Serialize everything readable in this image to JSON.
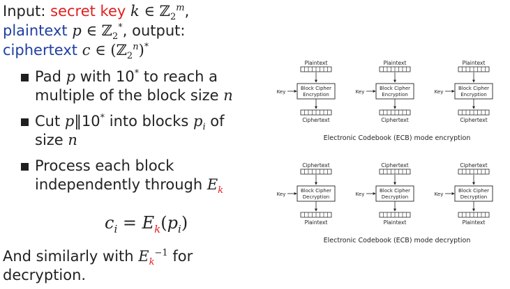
{
  "intro": {
    "input_label": "Input: ",
    "secret_key": "secret key ",
    "key_var": "k",
    "in": " ∈ ",
    "field": "ℤ",
    "sub2": "2",
    "sup_m": "m",
    "comma": ",",
    "plaintext_label": "plaintext ",
    "p_var": "p",
    "sup_star": "*",
    "output_label": ", output:",
    "ciphertext_label": "ciphertext ",
    "c_var": "c",
    "open": "(",
    "sup_n": "n",
    "close": ")",
    "star": "*"
  },
  "bullets": [
    {
      "l1a": "Pad ",
      "l1b": "p",
      "l1c": " with 10",
      "l1d": "*",
      "l1e": " to reach a",
      "l2a": "multiple of the block size ",
      "l2b": "n"
    },
    {
      "l1a": "Cut ",
      "l1b": "p",
      "l1c": "‖10",
      "l1d": "*",
      "l1e": " into blocks ",
      "l1f": "p",
      "l1g": "i",
      "l1h": " of",
      "l2a": "size ",
      "l2b": "n"
    },
    {
      "l1a": "Process each block",
      "l2a": "independently through ",
      "l2b": "E",
      "l2c": "k"
    }
  ],
  "formula": {
    "c": "c",
    "i": "i",
    "eq": " = ",
    "E": "E",
    "k": "k",
    "open": "(",
    "p": "p",
    "close": ")"
  },
  "closing": {
    "l1a": "And similarly with ",
    "E": "E",
    "k": "k",
    "sup": "−1",
    "l1b": " for",
    "l2": "decryption."
  },
  "diagrams": {
    "encryption": {
      "caption": "Electronic Codebook (ECB) mode encryption",
      "input_label": "Plaintext",
      "output_label": "Ciphertext",
      "box_line1": "Block Cipher",
      "box_line2": "Encryption",
      "key_label": "Key"
    },
    "decryption": {
      "caption": "Electronic Codebook (ECB) mode decryption",
      "input_label": "Ciphertext",
      "output_label": "Plaintext",
      "box_line1": "Block Cipher",
      "box_line2": "Decryption",
      "key_label": "Key"
    }
  },
  "colors": {
    "blue": "#1e3fa0",
    "red": "#e0201e",
    "text": "#222222"
  }
}
